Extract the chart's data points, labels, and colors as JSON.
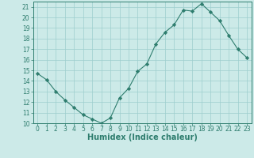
{
  "title": "",
  "xlabel": "Humidex (Indice chaleur)",
  "ylabel": "",
  "x_values": [
    0,
    1,
    2,
    3,
    4,
    5,
    6,
    7,
    8,
    9,
    10,
    11,
    12,
    13,
    14,
    15,
    16,
    17,
    18,
    19,
    20,
    21,
    22,
    23
  ],
  "y_values": [
    14.7,
    14.1,
    13.0,
    12.2,
    11.5,
    10.8,
    10.4,
    10.0,
    10.5,
    12.4,
    13.3,
    14.9,
    15.6,
    17.5,
    18.6,
    19.3,
    20.7,
    20.6,
    21.3,
    20.5,
    19.7,
    18.3,
    17.0,
    16.2
  ],
  "line_color": "#2e7d6e",
  "marker": "D",
  "marker_size": 2.2,
  "bg_color": "#cceae8",
  "grid_color": "#9ecece",
  "ylim": [
    10,
    21.5
  ],
  "xlim": [
    -0.5,
    23.5
  ],
  "yticks": [
    10,
    11,
    12,
    13,
    14,
    15,
    16,
    17,
    18,
    19,
    20,
    21
  ],
  "xticks": [
    0,
    1,
    2,
    3,
    4,
    5,
    6,
    7,
    8,
    9,
    10,
    11,
    12,
    13,
    14,
    15,
    16,
    17,
    18,
    19,
    20,
    21,
    22,
    23
  ],
  "tick_fontsize": 5.5,
  "label_fontsize": 7.0
}
